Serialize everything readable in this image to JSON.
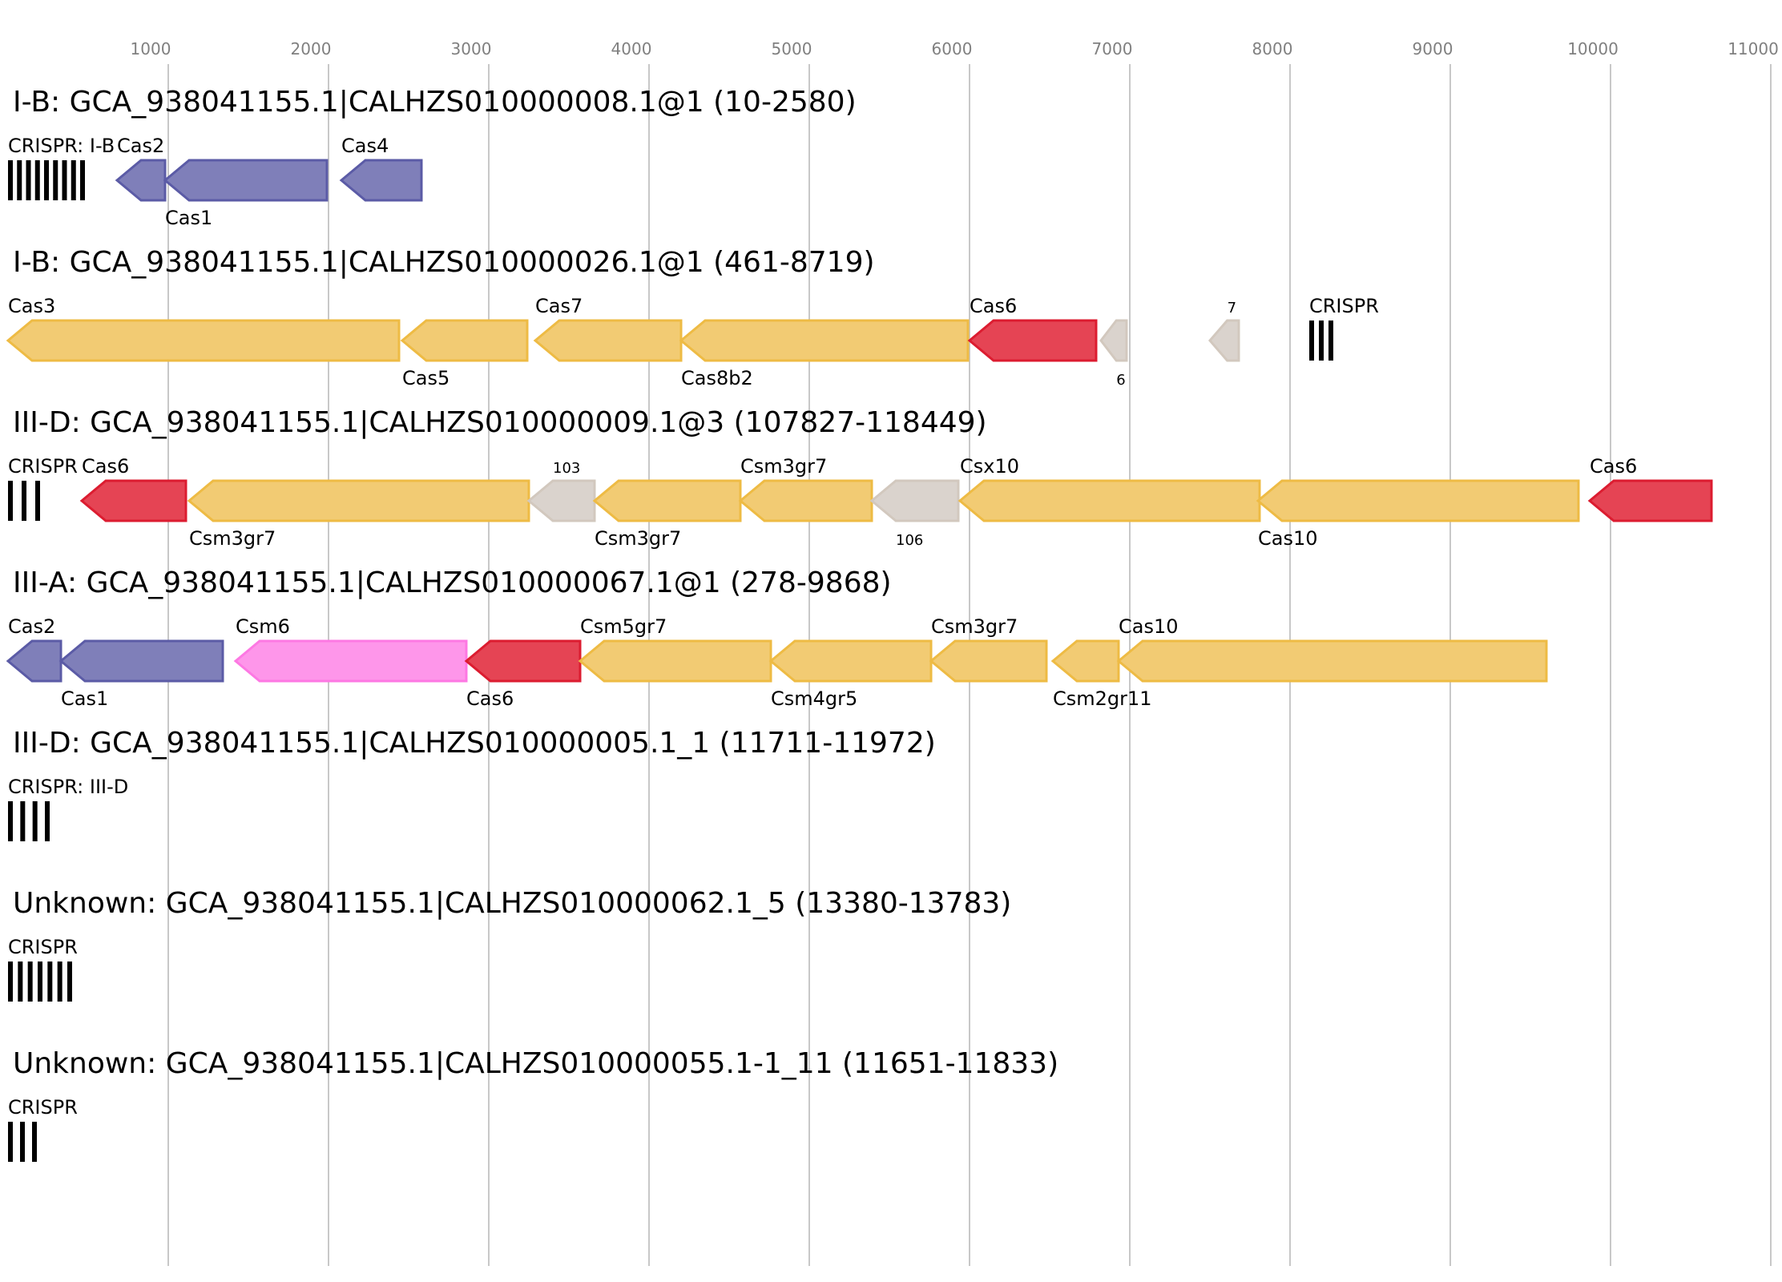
{
  "axis": {
    "ticks": [
      1000,
      2000,
      3000,
      4000,
      5000,
      6000,
      7000,
      8000,
      9000,
      10000,
      11000
    ]
  },
  "colors": {
    "blue": "#7f7fb9",
    "blue_stroke": "#5b5ba6",
    "yellow": "#f2cb73",
    "yellow_stroke": "#eebb44",
    "red": "#e54454",
    "red_stroke": "#dc1c30",
    "grey": "#dad3cd",
    "grey_stroke": "#d2c8be",
    "pink": "#fe96ea",
    "pink_stroke": "#fd78e3",
    "crispr": "#000000"
  },
  "loci": [
    {
      "title": "I-B: GCA_938041155.1|CALHZS010000008.1@1 (10-2580)",
      "crisprs": [
        {
          "label": "CRISPR: I-B",
          "start": 0,
          "end": 480,
          "bars": 9,
          "label_pos": "above"
        }
      ],
      "genes": [
        {
          "label": "Cas2",
          "start": 680,
          "end": 980,
          "strand": "-",
          "color": "blue",
          "label_pos": "above"
        },
        {
          "label": "Cas1",
          "start": 980,
          "end": 1990,
          "strand": "-",
          "color": "blue",
          "label_pos": "below"
        },
        {
          "label": "Cas4",
          "start": 2080,
          "end": 2580,
          "strand": "-",
          "color": "blue",
          "label_pos": "above"
        }
      ]
    },
    {
      "title": "I-B: GCA_938041155.1|CALHZS010000026.1@1 (461-8719)",
      "crisprs": [
        {
          "label": "CRISPR",
          "start": 8120,
          "end": 8270,
          "bars": 3,
          "label_pos": "above"
        }
      ],
      "genes": [
        {
          "label": "Cas3",
          "start": 0,
          "end": 2440,
          "strand": "-",
          "color": "yellow",
          "label_pos": "above"
        },
        {
          "label": "Cas5",
          "start": 2460,
          "end": 3240,
          "strand": "-",
          "color": "yellow",
          "label_pos": "below"
        },
        {
          "label": "Cas7",
          "start": 3290,
          "end": 4200,
          "strand": "-",
          "color": "yellow",
          "label_pos": "above"
        },
        {
          "label": "Cas8b2",
          "start": 4200,
          "end": 5990,
          "strand": "-",
          "color": "yellow",
          "label_pos": "below"
        },
        {
          "label": "Cas6",
          "start": 6000,
          "end": 6790,
          "strand": "-",
          "color": "red",
          "label_pos": "above"
        },
        {
          "label": "6",
          "start": 6820,
          "end": 6980,
          "strand": "-",
          "color": "grey",
          "label_pos": "below",
          "small": true
        },
        {
          "label": "7",
          "start": 7500,
          "end": 7680,
          "strand": "-",
          "color": "grey",
          "label_pos": "above",
          "small": true
        }
      ]
    },
    {
      "title": "III-D: GCA_938041155.1|CALHZS010000009.1@3 (107827-118449)",
      "crisprs": [
        {
          "label": "CRISPR",
          "start": 0,
          "end": 200,
          "bars": 3,
          "label_pos": "above"
        }
      ],
      "genes": [
        {
          "label": "Cas6",
          "start": 460,
          "end": 1110,
          "strand": "-",
          "color": "red",
          "label_pos": "above"
        },
        {
          "label": "Csm3gr7",
          "start": 1130,
          "end": 3250,
          "strand": "-",
          "color": "yellow",
          "label_pos": "below"
        },
        {
          "label": "103",
          "start": 3250,
          "end": 3660,
          "strand": "-",
          "color": "grey",
          "label_pos": "above",
          "small": true
        },
        {
          "label": "Csm3gr7",
          "start": 3660,
          "end": 4570,
          "strand": "-",
          "color": "yellow",
          "label_pos": "below"
        },
        {
          "label": "Csm3gr7",
          "start": 4570,
          "end": 5390,
          "strand": "-",
          "color": "yellow",
          "label_pos": "above"
        },
        {
          "label": "106",
          "start": 5390,
          "end": 5930,
          "strand": "-",
          "color": "grey",
          "label_pos": "below",
          "small": true
        },
        {
          "label": "Csx10",
          "start": 5940,
          "end": 7810,
          "strand": "-",
          "color": "yellow",
          "label_pos": "above"
        },
        {
          "label": "Cas10",
          "start": 7800,
          "end": 9800,
          "strand": "-",
          "color": "yellow",
          "label_pos": "below"
        },
        {
          "label": "Cas6",
          "start": 9870,
          "end": 10630,
          "strand": "-",
          "color": "red",
          "label_pos": "above"
        }
      ]
    },
    {
      "title": "III-A: GCA_938041155.1|CALHZS010000067.1@1 (278-9868)",
      "crisprs": [],
      "genes": [
        {
          "label": "Cas2",
          "start": 0,
          "end": 330,
          "strand": "-",
          "color": "blue",
          "label_pos": "above"
        },
        {
          "label": "Cas1",
          "start": 330,
          "end": 1340,
          "strand": "-",
          "color": "blue",
          "label_pos": "below"
        },
        {
          "label": "Csm6",
          "start": 1420,
          "end": 2860,
          "strand": "-",
          "color": "pink",
          "label_pos": "above"
        },
        {
          "label": "Cas6",
          "start": 2860,
          "end": 3570,
          "strand": "-",
          "color": "red",
          "label_pos": "below"
        },
        {
          "label": "Csm5gr7",
          "start": 3570,
          "end": 4760,
          "strand": "-",
          "color": "yellow",
          "label_pos": "above"
        },
        {
          "label": "Csm4gr5",
          "start": 4760,
          "end": 5760,
          "strand": "-",
          "color": "yellow",
          "label_pos": "below"
        },
        {
          "label": "Csm3gr7",
          "start": 5760,
          "end": 6480,
          "strand": "-",
          "color": "yellow",
          "label_pos": "above"
        },
        {
          "label": "Csm2gr11",
          "start": 6520,
          "end": 6930,
          "strand": "-",
          "color": "yellow",
          "label_pos": "below"
        },
        {
          "label": "Cas10",
          "start": 6930,
          "end": 9600,
          "strand": "-",
          "color": "yellow",
          "label_pos": "above"
        }
      ]
    },
    {
      "title": "III-D: GCA_938041155.1|CALHZS010000005.1_1 (11711-11972)",
      "crisprs": [
        {
          "label": "CRISPR: III-D",
          "start": 0,
          "end": 260,
          "bars": 4,
          "label_pos": "above"
        }
      ],
      "genes": []
    },
    {
      "title": "Unknown: GCA_938041155.1|CALHZS010000062.1_5 (13380-13783)",
      "crisprs": [
        {
          "label": "CRISPR",
          "start": 0,
          "end": 400,
          "bars": 7,
          "label_pos": "above"
        }
      ],
      "genes": []
    },
    {
      "title": "Unknown: GCA_938041155.1|CALHZS010000055.1-1_11 (11651-11833)",
      "crisprs": [
        {
          "label": "CRISPR",
          "start": 0,
          "end": 180,
          "bars": 3,
          "label_pos": "above"
        }
      ],
      "genes": []
    }
  ]
}
